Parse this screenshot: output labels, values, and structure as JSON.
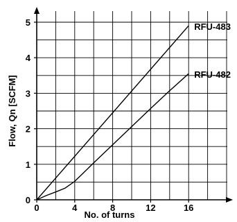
{
  "chart_data": {
    "type": "line",
    "title": "",
    "xlabel": "No. of turns",
    "ylabel": "Flow,  Qn [SCFM]",
    "xlim": [
      0,
      20
    ],
    "ylim": [
      0,
      5.2
    ],
    "grid": true,
    "legend": "none",
    "x_ticks": [
      0,
      4,
      8,
      12,
      16
    ],
    "x_tick_labels": [
      "0",
      "4",
      "8",
      "12",
      "16"
    ],
    "y_ticks": [
      0,
      1,
      2,
      3,
      4,
      5
    ],
    "y_tick_labels": [
      "0",
      "1",
      "2",
      "3",
      "4",
      "5"
    ],
    "series": [
      {
        "name": "RFU-483",
        "x": [
          0,
          16
        ],
        "y": [
          0,
          4.9
        ]
      },
      {
        "name": "RFU-482",
        "x": [
          0,
          1,
          2,
          3,
          4,
          5,
          6,
          8,
          10,
          12,
          14,
          16
        ],
        "y": [
          0,
          0.12,
          0.22,
          0.33,
          0.52,
          0.78,
          1.04,
          1.55,
          2.06,
          2.57,
          3.07,
          3.55
        ]
      }
    ]
  }
}
